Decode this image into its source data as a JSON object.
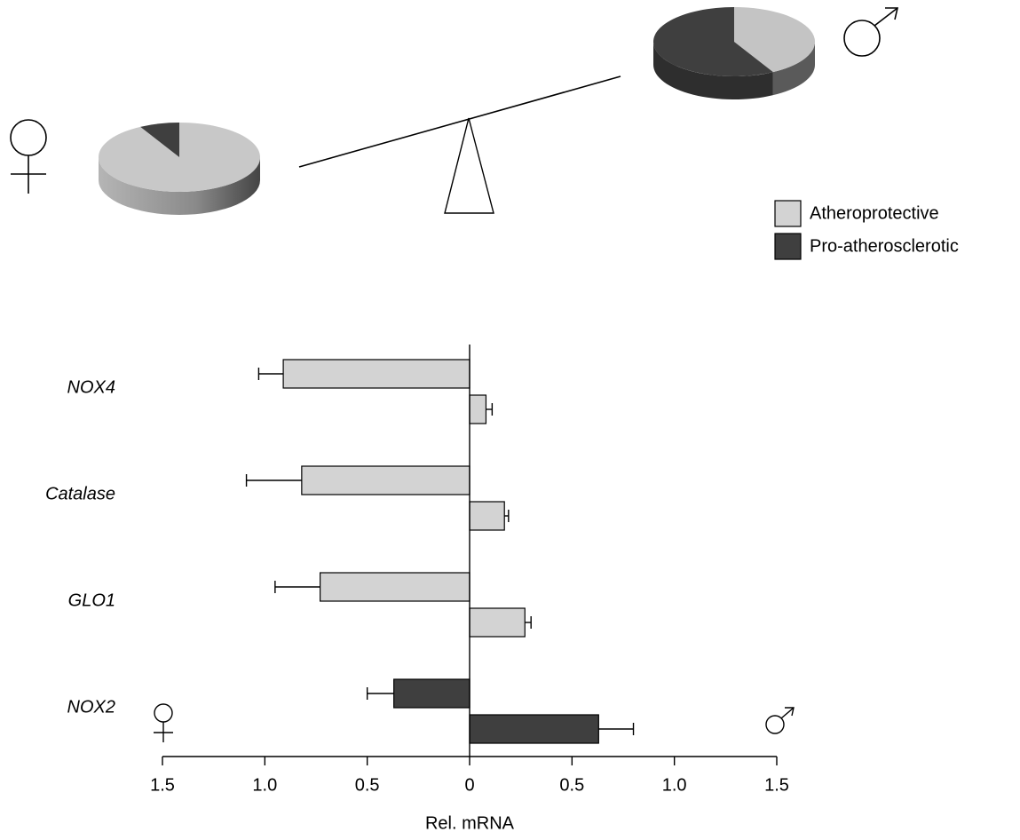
{
  "chart_data": {
    "type": "bar",
    "orientation": "horizontal",
    "x_label": "Rel. mRNA",
    "categories": [
      "NOX4",
      "Catalase",
      "GLO1",
      "NOX2"
    ],
    "legend": [
      {
        "label": "Atheroprotective",
        "color": "#d3d3d3"
      },
      {
        "label": "Pro-atherosclerotic",
        "color": "#3f3f3f"
      }
    ],
    "category_legend_index": [
      0,
      0,
      0,
      1
    ],
    "female": {
      "values": [
        -0.91,
        -0.82,
        -0.73,
        -0.37
      ],
      "errors": [
        0.12,
        0.27,
        0.22,
        0.13
      ]
    },
    "male": {
      "values": [
        0.08,
        0.17,
        0.27,
        0.63
      ],
      "errors": [
        0.03,
        0.02,
        0.03,
        0.17
      ]
    },
    "xlim": [
      -1.5,
      1.5
    ],
    "xticks": [
      {
        "value": -1.5,
        "label": "1.5"
      },
      {
        "value": -1,
        "label": "1.0"
      },
      {
        "value": -0.5,
        "label": "0.5"
      },
      0,
      0.5,
      {
        "value": 1,
        "label": "1.0"
      },
      1.5
    ],
    "pies": {
      "female": {
        "values": [
          92,
          8
        ]
      },
      "male": {
        "values": [
          42,
          58
        ]
      }
    }
  }
}
